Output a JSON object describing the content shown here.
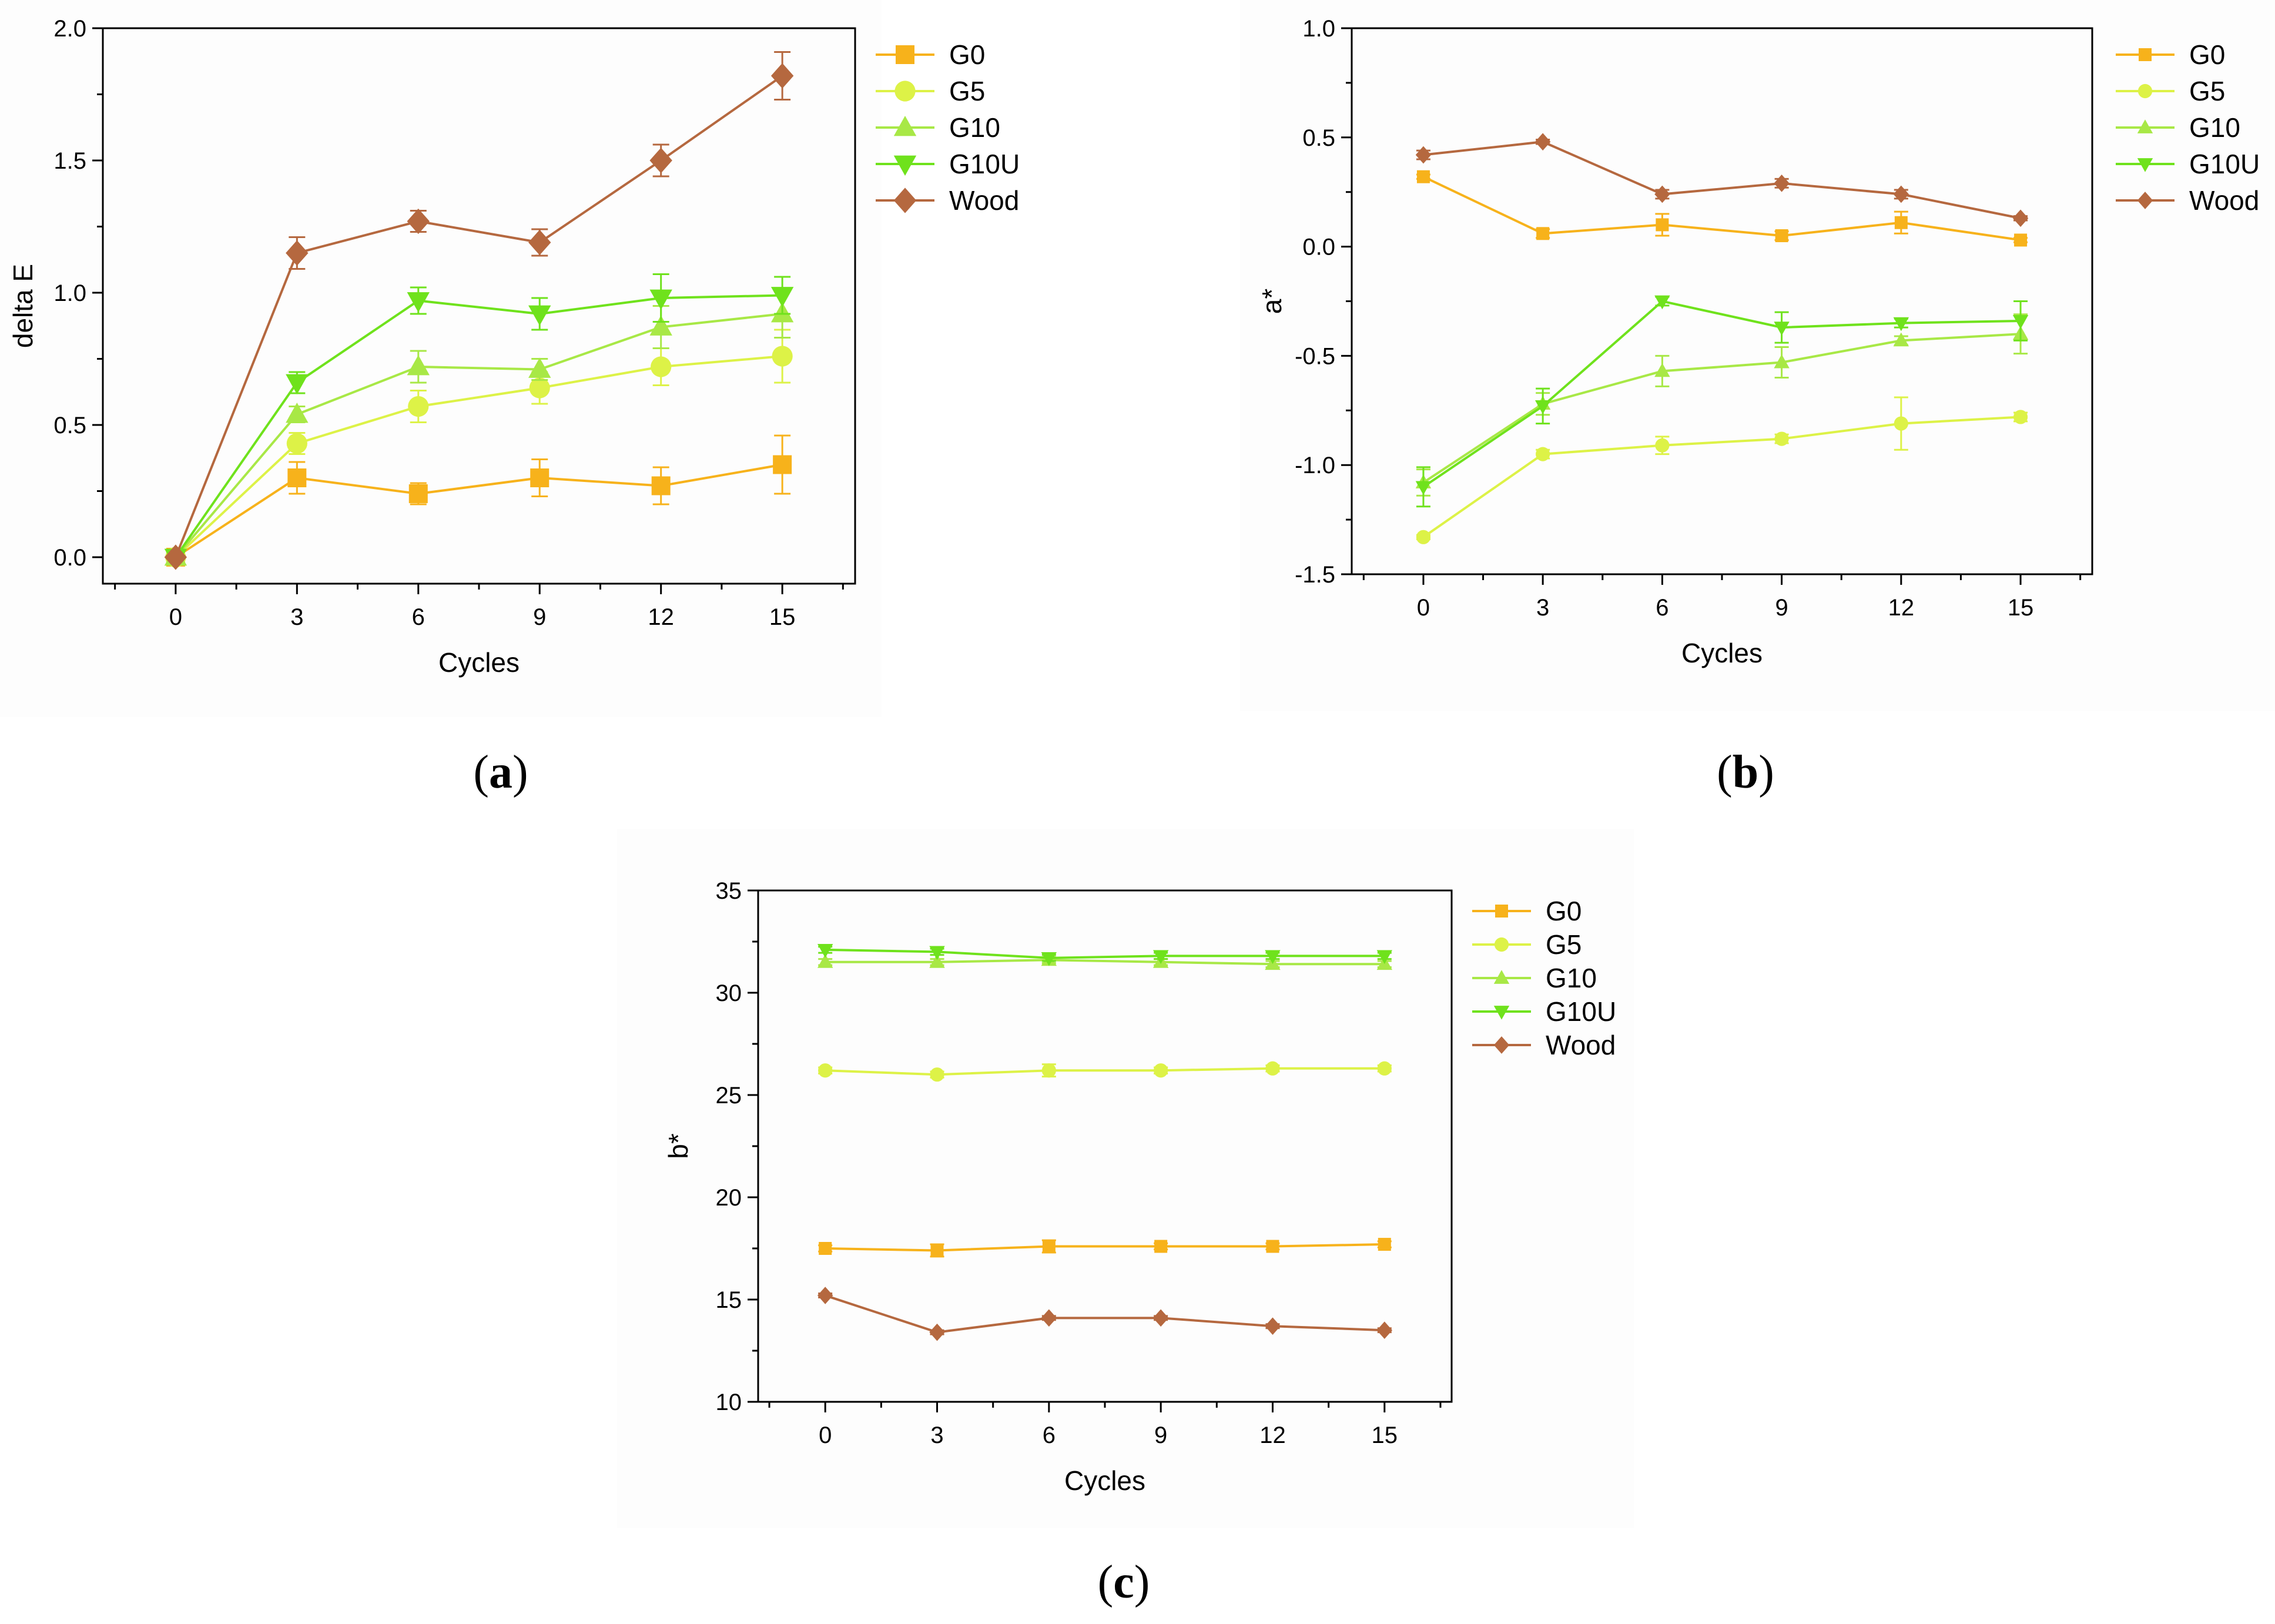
{
  "figure": {
    "panel_labels": [
      {
        "open": "(",
        "letter": "a",
        "close": ")"
      },
      {
        "open": "(",
        "letter": "b",
        "close": ")"
      },
      {
        "open": "(",
        "letter": "c",
        "close": ")"
      }
    ]
  },
  "series_styles": {
    "G0": {
      "color": "#F7B21B",
      "marker": "square"
    },
    "G5": {
      "color": "#DDF247",
      "marker": "circle"
    },
    "G10": {
      "color": "#A8E846",
      "marker": "triangle-up"
    },
    "G10U": {
      "color": "#6FE21C",
      "marker": "triangle-down"
    },
    "Wood": {
      "color": "#B5683F",
      "marker": "diamond"
    }
  },
  "chart_data": [
    {
      "type": "line",
      "panel": "a",
      "title": "",
      "xlabel": "Cycles",
      "ylabel": "delta E",
      "x": [
        0,
        3,
        6,
        9,
        12,
        15
      ],
      "xlim": [
        -1.8,
        16.8
      ],
      "ylim": [
        -0.1,
        2.0
      ],
      "yticks": [
        0.0,
        0.5,
        1.0,
        1.5,
        2.0
      ],
      "ytick_labels": [
        "0.0",
        "0.5",
        "1.0",
        "1.5",
        "2.0"
      ],
      "xtick_labels": [
        "0",
        "3",
        "6",
        "9",
        "12",
        "15"
      ],
      "series": [
        {
          "name": "G0",
          "values": [
            0.0,
            0.3,
            0.24,
            0.3,
            0.27,
            0.35
          ],
          "errors": [
            0.01,
            0.06,
            0.04,
            0.07,
            0.07,
            0.11
          ]
        },
        {
          "name": "G5",
          "values": [
            0.0,
            0.43,
            0.57,
            0.64,
            0.72,
            0.76
          ],
          "errors": [
            0.01,
            0.04,
            0.06,
            0.06,
            0.07,
            0.1
          ]
        },
        {
          "name": "G10",
          "values": [
            0.0,
            0.54,
            0.72,
            0.71,
            0.87,
            0.92
          ],
          "errors": [
            0.01,
            0.03,
            0.06,
            0.04,
            0.08,
            0.09
          ]
        },
        {
          "name": "G10U",
          "values": [
            0.0,
            0.66,
            0.97,
            0.92,
            0.98,
            0.99
          ],
          "errors": [
            0.01,
            0.04,
            0.05,
            0.06,
            0.09,
            0.07
          ]
        },
        {
          "name": "Wood",
          "values": [
            0.0,
            1.15,
            1.27,
            1.19,
            1.5,
            1.82
          ],
          "errors": [
            0.01,
            0.06,
            0.04,
            0.05,
            0.06,
            0.09
          ]
        }
      ],
      "legend": [
        "G0",
        "G5",
        "G10",
        "G10U",
        "Wood"
      ]
    },
    {
      "type": "line",
      "panel": "b",
      "title": "",
      "xlabel": "Cycles",
      "ylabel": "a*",
      "x": [
        0,
        3,
        6,
        9,
        12,
        15
      ],
      "xlim": [
        -1.8,
        16.8
      ],
      "ylim": [
        -1.5,
        1.0
      ],
      "yticks": [
        -1.5,
        -1.0,
        -0.5,
        0.0,
        0.5,
        1.0
      ],
      "ytick_labels": [
        "-1.5",
        "-1.0",
        "-0.5",
        "0.0",
        "0.5",
        "1.0"
      ],
      "xtick_labels": [
        "0",
        "3",
        "6",
        "9",
        "12",
        "15"
      ],
      "series": [
        {
          "name": "G0",
          "values": [
            0.32,
            0.06,
            0.1,
            0.05,
            0.11,
            0.03
          ],
          "errors": [
            0.01,
            0.02,
            0.05,
            0.02,
            0.05,
            0.01
          ]
        },
        {
          "name": "G5",
          "values": [
            -1.33,
            -0.95,
            -0.91,
            -0.88,
            -0.81,
            -0.78
          ],
          "errors": [
            0.01,
            0.02,
            0.04,
            0.02,
            0.12,
            0.02
          ]
        },
        {
          "name": "G10",
          "values": [
            -1.08,
            -0.72,
            -0.57,
            -0.53,
            -0.43,
            -0.4
          ],
          "errors": [
            0.06,
            0.05,
            0.07,
            0.07,
            0.02,
            0.09
          ]
        },
        {
          "name": "G10U",
          "values": [
            -1.1,
            -0.73,
            -0.25,
            -0.37,
            -0.35,
            -0.34
          ],
          "errors": [
            0.09,
            0.08,
            0.02,
            0.07,
            0.02,
            0.09
          ]
        },
        {
          "name": "Wood",
          "values": [
            0.42,
            0.48,
            0.24,
            0.29,
            0.24,
            0.13
          ],
          "errors": [
            0.02,
            0.01,
            0.02,
            0.02,
            0.02,
            0.01
          ]
        }
      ],
      "legend": [
        "G0",
        "G5",
        "G10",
        "G10U",
        "Wood"
      ]
    },
    {
      "type": "line",
      "panel": "c",
      "title": "",
      "xlabel": "Cycles",
      "ylabel": "b*",
      "x": [
        0,
        3,
        6,
        9,
        12,
        15
      ],
      "xlim": [
        -1.8,
        16.8
      ],
      "ylim": [
        10,
        35
      ],
      "yticks": [
        10,
        15,
        20,
        25,
        30,
        35
      ],
      "ytick_labels": [
        "10",
        "15",
        "20",
        "25",
        "30",
        "35"
      ],
      "xtick_labels": [
        "0",
        "3",
        "6",
        "9",
        "12",
        "15"
      ],
      "series": [
        {
          "name": "G0",
          "values": [
            17.5,
            17.4,
            17.6,
            17.6,
            17.6,
            17.7
          ],
          "errors": [
            0.15,
            0.3,
            0.3,
            0.15,
            0.15,
            0.15
          ]
        },
        {
          "name": "G5",
          "values": [
            26.2,
            26.0,
            26.2,
            26.2,
            26.3,
            26.3
          ],
          "errors": [
            0.15,
            0.15,
            0.3,
            0.15,
            0.15,
            0.15
          ]
        },
        {
          "name": "G10",
          "values": [
            31.5,
            31.5,
            31.6,
            31.5,
            31.4,
            31.4
          ],
          "errors": [
            0.15,
            0.15,
            0.15,
            0.15,
            0.15,
            0.15
          ]
        },
        {
          "name": "G10U",
          "values": [
            32.1,
            32.0,
            31.7,
            31.8,
            31.8,
            31.8
          ],
          "errors": [
            0.15,
            0.15,
            0.15,
            0.15,
            0.15,
            0.15
          ]
        },
        {
          "name": "Wood",
          "values": [
            15.2,
            13.4,
            14.1,
            14.1,
            13.7,
            13.5
          ],
          "errors": [
            0.1,
            0.1,
            0.1,
            0.1,
            0.1,
            0.1
          ]
        }
      ],
      "legend": [
        "G0",
        "G5",
        "G10",
        "G10U",
        "Wood"
      ]
    }
  ]
}
